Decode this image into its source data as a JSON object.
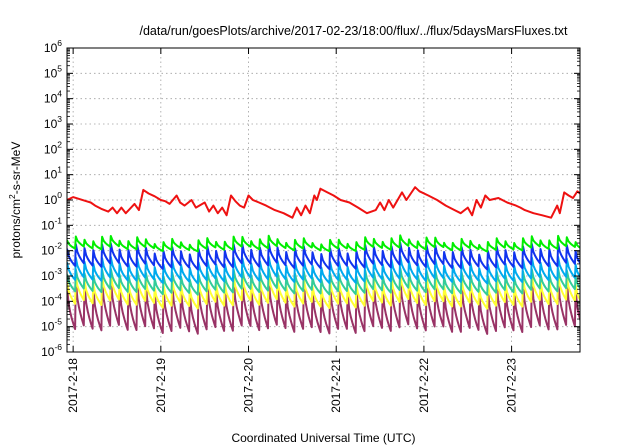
{
  "chart_data": {
    "type": "line",
    "title": "/data/run/goesPlots/archive/2017-02-23/18:00/flux/../flux/5daysMarsFluxes.txt",
    "xlabel": "Coordinated Universal Time (UTC)",
    "ylabel_parts": [
      "protons/cm",
      "2",
      "-s-sr-MeV"
    ],
    "yscale": "log",
    "ylim": [
      1e-06,
      1000000.0
    ],
    "xlim": [
      -0.07,
      5.78
    ],
    "grid": true,
    "y_ticks": [
      {
        "value": 1e-06,
        "base": "10",
        "exp": "-6"
      },
      {
        "value": 1e-05,
        "base": "10",
        "exp": "-5"
      },
      {
        "value": 0.0001,
        "base": "10",
        "exp": "-4"
      },
      {
        "value": 0.001,
        "base": "10",
        "exp": "-3"
      },
      {
        "value": 0.01,
        "base": "10",
        "exp": "-2"
      },
      {
        "value": 0.1,
        "base": "10",
        "exp": "-1"
      },
      {
        "value": 1,
        "base": "10",
        "exp": "0"
      },
      {
        "value": 10,
        "base": "10",
        "exp": "1"
      },
      {
        "value": 100,
        "base": "10",
        "exp": "2"
      },
      {
        "value": 1000,
        "base": "10",
        "exp": "3"
      },
      {
        "value": 10000,
        "base": "10",
        "exp": "4"
      },
      {
        "value": 100000,
        "base": "10",
        "exp": "5"
      },
      {
        "value": 1000000,
        "base": "10",
        "exp": "6"
      }
    ],
    "x_ticks": [
      {
        "value": 0,
        "label": "2017-2-18"
      },
      {
        "value": 1,
        "label": "2017-2-19"
      },
      {
        "value": 2,
        "label": "2017-2-20"
      },
      {
        "value": 3,
        "label": "2017-2-21"
      },
      {
        "value": 4,
        "label": "2017-2-22"
      },
      {
        "value": 5,
        "label": "2017-2-23"
      }
    ],
    "series": [
      {
        "color": "#ee1111",
        "style": "points",
        "x": [
          -0.07,
          0.0,
          0.15,
          0.2,
          0.25,
          0.32,
          0.4,
          0.45,
          0.5,
          0.55,
          0.6,
          0.7,
          0.75,
          0.8,
          0.86,
          0.93,
          1.0,
          1.05,
          1.1,
          1.18,
          1.22,
          1.27,
          1.35,
          1.4,
          1.5,
          1.55,
          1.6,
          1.65,
          1.7,
          1.75,
          1.8,
          1.85,
          1.9,
          1.95,
          2.0,
          2.05,
          2.12,
          2.2,
          2.3,
          2.4,
          2.5,
          2.55,
          2.6,
          2.65,
          2.7,
          2.75,
          2.78,
          2.82,
          2.9,
          2.97,
          3.05,
          3.15,
          3.25,
          3.35,
          3.45,
          3.5,
          3.55,
          3.6,
          3.65,
          3.75,
          3.8,
          3.85,
          3.9,
          3.95,
          4.05,
          4.15,
          4.25,
          4.35,
          4.42,
          4.5,
          4.55,
          4.6,
          4.65,
          4.7,
          4.75,
          4.85,
          4.95,
          5.05,
          5.1,
          5.15,
          5.25,
          5.35,
          5.45,
          5.52,
          5.55,
          5.6,
          5.65,
          5.7,
          5.75,
          5.78
        ],
        "y": [
          1.0,
          1.3,
          0.9,
          0.8,
          0.6,
          0.45,
          0.35,
          0.5,
          0.3,
          0.5,
          0.3,
          0.7,
          0.4,
          2.5,
          1.8,
          1.4,
          1.0,
          0.9,
          0.7,
          1.5,
          0.8,
          0.6,
          1.0,
          0.5,
          0.8,
          0.35,
          0.6,
          0.3,
          0.5,
          0.25,
          1.5,
          0.9,
          0.6,
          0.5,
          1.5,
          1.0,
          0.8,
          0.6,
          0.4,
          0.3,
          0.2,
          0.5,
          0.25,
          0.6,
          0.3,
          1.5,
          1.0,
          2.8,
          2.0,
          1.5,
          1.0,
          0.8,
          0.5,
          0.3,
          0.4,
          0.8,
          0.4,
          1.0,
          0.5,
          2.0,
          1.0,
          1.8,
          3.2,
          2.2,
          1.5,
          1.0,
          0.6,
          0.4,
          0.3,
          0.5,
          0.25,
          1.0,
          0.5,
          1.5,
          1.0,
          1.2,
          0.8,
          0.6,
          0.5,
          0.4,
          0.3,
          0.25,
          0.2,
          0.6,
          0.3,
          2.0,
          1.5,
          1.2,
          2.2,
          1.8
        ]
      },
      {
        "color": "#00ee00",
        "style": "sawtooth",
        "period": 0.1,
        "peak": 0.026,
        "trough": 0.012,
        "x_start": -0.07,
        "x_end": 5.78,
        "wiggle": 0.12
      },
      {
        "color": "#1133ee",
        "style": "sawtooth",
        "period": 0.1,
        "peak": 0.012,
        "trough": 0.0025,
        "x_start": -0.07,
        "x_end": 5.78,
        "wiggle": 0.15
      },
      {
        "color": "#00aaee",
        "style": "sawtooth",
        "period": 0.1,
        "peak": 0.0035,
        "trough": 0.0007,
        "x_start": -0.07,
        "x_end": 5.78,
        "wiggle": 0.15
      },
      {
        "color": "#33cc99",
        "style": "sawtooth",
        "period": 0.1,
        "peak": 0.0012,
        "trough": 0.00025,
        "x_start": -0.07,
        "x_end": 5.78,
        "wiggle": 0.15
      },
      {
        "color": "#ffff33",
        "style": "sawtooth",
        "period": 0.1,
        "peak": 0.0006,
        "trough": 8e-05,
        "x_start": -0.07,
        "x_end": 5.78,
        "wiggle": 0.2
      },
      {
        "color": "#993366",
        "style": "sawtooth",
        "period": 0.1,
        "peak": 0.0004,
        "trough": 8e-06,
        "x_start": -0.07,
        "x_end": 5.78,
        "wiggle": 0.2
      }
    ]
  }
}
